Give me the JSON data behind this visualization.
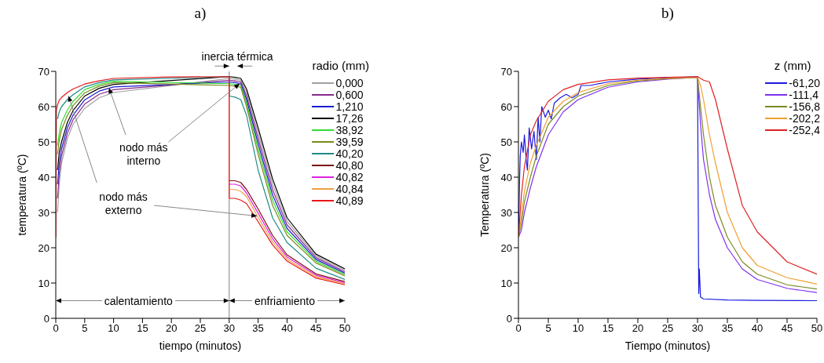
{
  "chart_data": [
    {
      "type": "line",
      "title": "a)",
      "xlabel": "tiempo (minutos)",
      "ylabel": "temperatura (ºC)",
      "legend_title": "radio (mm)",
      "legend": "top right",
      "marker": "none",
      "xlim": [
        0,
        50
      ],
      "xticks": [
        0,
        5,
        10,
        15,
        20,
        25,
        30,
        35,
        40,
        45,
        50
      ],
      "ylim": [
        0,
        70
      ],
      "yticks": [
        0,
        10,
        20,
        30,
        40,
        50,
        60,
        70
      ],
      "ref_lines": [
        {
          "axis": "x",
          "value": 30,
          "color": "#808080"
        }
      ],
      "annotations": [
        "inercia térmica",
        {
          "text": "nodo más interno",
          "x": 9.2,
          "y": 65.3
        },
        {
          "text": "nodo más externo",
          "x": 34.8,
          "y": 29
        },
        "calentamiento",
        "enfriamiento"
      ],
      "x": [
        0,
        0.1,
        0.3,
        0.6,
        1,
        2,
        3,
        5,
        7.5,
        10,
        20,
        30,
        30,
        31,
        32,
        33,
        35,
        37.5,
        40,
        45,
        50
      ],
      "series": [
        {
          "name": "0,000",
          "color": "#a0a0a0",
          "values": [
            null,
            null,
            30,
            38,
            44,
            51,
            55,
            59.5,
            62.5,
            64,
            null,
            null,
            68,
            67.8,
            67.5,
            64,
            52.5,
            38,
            27.5,
            17.7,
            13.6
          ]
        },
        {
          "name": "0,600",
          "color": "#8b2a8b",
          "values": [
            null,
            null,
            34,
            41,
            46,
            52.5,
            56.3,
            60.7,
            63.5,
            64.8,
            null,
            null,
            67.5,
            67.3,
            67,
            63,
            51,
            36.5,
            26.5,
            17.2,
            13.2
          ]
        },
        {
          "name": "1,210",
          "color": "#1c1cd0",
          "values": [
            null,
            null,
            38,
            44,
            48,
            54,
            57.6,
            61.9,
            64.4,
            65.6,
            null,
            null,
            67,
            66.8,
            66.5,
            62,
            49.5,
            35,
            25.5,
            16.7,
            12.8
          ]
        },
        {
          "name": "17,26",
          "color": "#000000",
          "values": [
            null,
            null,
            42,
            47,
            50,
            55.5,
            58.9,
            63,
            65.2,
            66.3,
            null,
            null,
            68.5,
            68.3,
            68,
            65,
            54,
            39.5,
            28.5,
            18.2,
            14
          ]
        },
        {
          "name": "38,92",
          "color": "#33dd33",
          "values": [
            null,
            null,
            49,
            52.5,
            55.5,
            59,
            61.5,
            64.8,
            66.3,
            67.2,
            null,
            null,
            66.5,
            66.3,
            66,
            61,
            48,
            33.5,
            24.5,
            16.2,
            12.4
          ]
        },
        {
          "name": "39,59",
          "color": "#7a8a1a",
          "values": [
            null,
            null,
            46.5,
            50.5,
            53.5,
            57.5,
            60.3,
            63.9,
            65.8,
            66.8,
            null,
            null,
            66,
            65.8,
            65.5,
            60,
            46.5,
            32,
            23.5,
            15.7,
            12
          ]
        },
        {
          "name": "40,20",
          "color": "#1f8a8a",
          "values": [
            null,
            null,
            56.5,
            58.5,
            60,
            62,
            63.4,
            65.6,
            66.8,
            67.6,
            null,
            68.5,
            63,
            62.7,
            62,
            57.5,
            42,
            28.5,
            21.5,
            14.2,
            11
          ]
        },
        {
          "name": "40,80",
          "color": "#7a1010",
          "values": [
            null,
            null,
            null,
            null,
            null,
            null,
            null,
            null,
            null,
            null,
            null,
            null,
            39,
            39,
            38.5,
            36.5,
            31,
            23.5,
            18,
            12.6,
            10.4
          ]
        },
        {
          "name": "40,82",
          "color": "#e020e0",
          "values": [
            null,
            null,
            null,
            null,
            null,
            null,
            null,
            null,
            null,
            null,
            null,
            null,
            38,
            38,
            37.5,
            35.5,
            29.8,
            22.6,
            17.4,
            12.2,
            10.1
          ]
        },
        {
          "name": "40,84",
          "color": "#f0a040",
          "values": [
            null,
            null,
            null,
            null,
            null,
            null,
            null,
            null,
            null,
            null,
            null,
            null,
            36.5,
            36.5,
            36,
            34.5,
            28.6,
            21.7,
            16.8,
            11.8,
            9.8
          ]
        },
        {
          "name": "40,89",
          "color": "#e81818",
          "values": [
            23,
            59,
            60.5,
            61.8,
            62.6,
            64,
            65,
            66.4,
            67.3,
            68,
            68.4,
            68.5,
            34,
            34,
            33.5,
            32.5,
            27.4,
            20.8,
            16.2,
            11.4,
            9.5
          ]
        }
      ]
    },
    {
      "type": "line",
      "title": "b)",
      "xlabel": "Tiempo (minutos)",
      "ylabel": "Temperatura (ºC)",
      "legend_title": "z (mm)",
      "legend": "top right",
      "marker": "none",
      "xlim": [
        0,
        50
      ],
      "xticks": [
        0,
        5,
        10,
        15,
        20,
        25,
        30,
        35,
        40,
        45,
        50
      ],
      "ylim": [
        0,
        70
      ],
      "yticks": [
        0,
        10,
        20,
        30,
        40,
        50,
        60,
        70
      ],
      "x": [
        0,
        0.5,
        1,
        2,
        3,
        5,
        7.5,
        10,
        15,
        20,
        25,
        30,
        30.5,
        31,
        32,
        33,
        35,
        37.5,
        40,
        45,
        50
      ],
      "series": [
        {
          "name": "-61,20",
          "color": "#1a1ae0",
          "x": [
            0,
            0.2,
            0.3,
            0.5,
            0.8,
            1,
            1.3,
            1.5,
            1.8,
            2.2,
            2.6,
            3,
            3.3,
            3.6,
            3.9,
            4.5,
            5,
            5.5,
            6,
            7,
            8,
            9,
            10,
            10.5,
            12,
            15,
            20,
            25,
            30,
            30.2,
            30.3,
            30.5,
            31,
            35,
            40,
            50
          ],
          "values": [
            23,
            40,
            46,
            50,
            47,
            52,
            45,
            42,
            54,
            48,
            53,
            45,
            57,
            50,
            60,
            57,
            59,
            56.5,
            61,
            62.5,
            63.5,
            62.5,
            63.5,
            66,
            66,
            67,
            67.8,
            null,
            68.5,
            7,
            14,
            6,
            5.5,
            5.2,
            5.1,
            5
          ]
        },
        {
          "name": "-111,4",
          "color": "#8030f0",
          "values": [
            23,
            25,
            30,
            37,
            43,
            52,
            58.5,
            62,
            65.5,
            67,
            67.8,
            68.3,
            55,
            45,
            35,
            28,
            20,
            14,
            11,
            8.5,
            7.3
          ]
        },
        {
          "name": "-156,8",
          "color": "#7a8a20",
          "values": [
            23,
            27,
            33,
            40,
            46,
            55,
            60,
            63,
            66,
            67.3,
            67.9,
            68.3,
            60,
            52,
            40,
            32,
            23,
            16,
            12.5,
            9.5,
            8.3
          ]
        },
        {
          "name": "-202,2",
          "color": "#f0a030",
          "values": [
            23,
            29,
            36,
            44,
            49,
            57,
            61.5,
            64,
            66.5,
            67.5,
            68,
            68.3,
            66,
            62,
            52,
            44,
            30,
            20,
            15,
            11.5,
            9.7
          ]
        },
        {
          "name": "-252,4",
          "color": "#e02020",
          "values": [
            23,
            35,
            43,
            52,
            56,
            61.5,
            64.8,
            66.3,
            67.6,
            68.1,
            68.3,
            68.5,
            68,
            67.5,
            67,
            62,
            48,
            32,
            24.5,
            16,
            12.5
          ]
        }
      ]
    }
  ]
}
